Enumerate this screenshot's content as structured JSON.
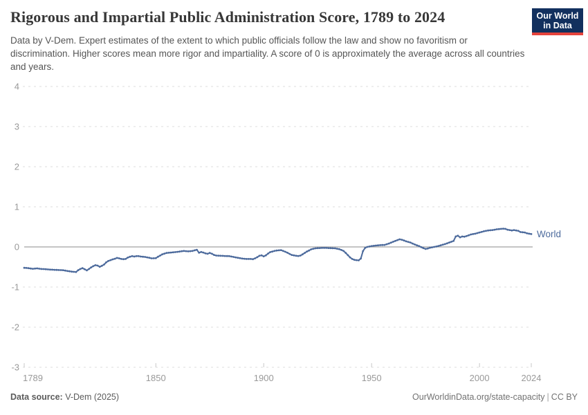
{
  "header": {
    "title": "Rigorous and Impartial Public Administration Score, 1789 to 2024",
    "subtitle_lines": [
      "Data by V-Dem. Expert estimates of the extent to which public officials follow the law and show no favoritism",
      "or discrimination. Higher scores mean more rigor and impartiality. A score of 0 is approximately the average",
      "across all countries and years."
    ],
    "logo": {
      "line1": "Our World",
      "line2": "in Data",
      "bg": "#12305e",
      "accent": "#e5433c"
    }
  },
  "chart_data": {
    "type": "line",
    "title": "Rigorous and Impartial Public Administration Score, 1789 to 2024",
    "xlabel": "",
    "ylabel": "",
    "xlim": [
      1789,
      2024
    ],
    "ylim": [
      -3,
      4
    ],
    "x_ticks": [
      1789,
      1850,
      1900,
      1950,
      2000,
      2024
    ],
    "y_ticks": [
      4,
      3,
      2,
      1,
      0,
      -1,
      -2,
      -3
    ],
    "grid": "horizontal-dashed",
    "zero_line": true,
    "legend_position": "end-of-line",
    "colors": {
      "line": "#4c6a9c",
      "grid": "#dddddd",
      "zero_line": "#a1a1a1",
      "tick_label": "#999999",
      "tick_mark": "#c8c8c8"
    },
    "series": [
      {
        "name": "World",
        "color": "#4c6a9c",
        "points": [
          [
            1789,
            -0.52
          ],
          [
            1791,
            -0.53
          ],
          [
            1793,
            -0.545
          ],
          [
            1795,
            -0.535
          ],
          [
            1797,
            -0.55
          ],
          [
            1799,
            -0.555
          ],
          [
            1801,
            -0.565
          ],
          [
            1803,
            -0.57
          ],
          [
            1805,
            -0.575
          ],
          [
            1807,
            -0.58
          ],
          [
            1809,
            -0.6
          ],
          [
            1811,
            -0.615
          ],
          [
            1813,
            -0.625
          ],
          [
            1814,
            -0.58
          ],
          [
            1815,
            -0.55
          ],
          [
            1816,
            -0.53
          ],
          [
            1817,
            -0.555
          ],
          [
            1818,
            -0.585
          ],
          [
            1819,
            -0.55
          ],
          [
            1820,
            -0.51
          ],
          [
            1821,
            -0.48
          ],
          [
            1822,
            -0.455
          ],
          [
            1823,
            -0.465
          ],
          [
            1824,
            -0.495
          ],
          [
            1825,
            -0.47
          ],
          [
            1826,
            -0.44
          ],
          [
            1827,
            -0.385
          ],
          [
            1828,
            -0.35
          ],
          [
            1829,
            -0.33
          ],
          [
            1830,
            -0.31
          ],
          [
            1831,
            -0.295
          ],
          [
            1832,
            -0.275
          ],
          [
            1833,
            -0.285
          ],
          [
            1834,
            -0.3
          ],
          [
            1835,
            -0.305
          ],
          [
            1836,
            -0.3
          ],
          [
            1837,
            -0.265
          ],
          [
            1838,
            -0.245
          ],
          [
            1839,
            -0.23
          ],
          [
            1840,
            -0.24
          ],
          [
            1841,
            -0.23
          ],
          [
            1842,
            -0.23
          ],
          [
            1843,
            -0.24
          ],
          [
            1845,
            -0.25
          ],
          [
            1847,
            -0.27
          ],
          [
            1848,
            -0.285
          ],
          [
            1850,
            -0.28
          ],
          [
            1851,
            -0.245
          ],
          [
            1852,
            -0.215
          ],
          [
            1853,
            -0.185
          ],
          [
            1855,
            -0.15
          ],
          [
            1857,
            -0.14
          ],
          [
            1859,
            -0.13
          ],
          [
            1861,
            -0.115
          ],
          [
            1863,
            -0.1
          ],
          [
            1865,
            -0.11
          ],
          [
            1867,
            -0.1
          ],
          [
            1868,
            -0.085
          ],
          [
            1869,
            -0.07
          ],
          [
            1870,
            -0.145
          ],
          [
            1871,
            -0.125
          ],
          [
            1872,
            -0.14
          ],
          [
            1873,
            -0.16
          ],
          [
            1874,
            -0.17
          ],
          [
            1875,
            -0.15
          ],
          [
            1876,
            -0.17
          ],
          [
            1877,
            -0.2
          ],
          [
            1878,
            -0.215
          ],
          [
            1880,
            -0.22
          ],
          [
            1882,
            -0.225
          ],
          [
            1884,
            -0.23
          ],
          [
            1886,
            -0.25
          ],
          [
            1888,
            -0.27
          ],
          [
            1890,
            -0.29
          ],
          [
            1892,
            -0.3
          ],
          [
            1894,
            -0.3
          ],
          [
            1895,
            -0.305
          ],
          [
            1896,
            -0.285
          ],
          [
            1897,
            -0.255
          ],
          [
            1898,
            -0.22
          ],
          [
            1899,
            -0.21
          ],
          [
            1900,
            -0.235
          ],
          [
            1901,
            -0.21
          ],
          [
            1902,
            -0.165
          ],
          [
            1903,
            -0.13
          ],
          [
            1904,
            -0.115
          ],
          [
            1905,
            -0.1
          ],
          [
            1906,
            -0.09
          ],
          [
            1907,
            -0.085
          ],
          [
            1908,
            -0.08
          ],
          [
            1909,
            -0.1
          ],
          [
            1910,
            -0.12
          ],
          [
            1911,
            -0.145
          ],
          [
            1912,
            -0.175
          ],
          [
            1913,
            -0.2
          ],
          [
            1914,
            -0.21
          ],
          [
            1915,
            -0.22
          ],
          [
            1916,
            -0.225
          ],
          [
            1917,
            -0.215
          ],
          [
            1918,
            -0.185
          ],
          [
            1919,
            -0.15
          ],
          [
            1920,
            -0.115
          ],
          [
            1921,
            -0.09
          ],
          [
            1922,
            -0.06
          ],
          [
            1923,
            -0.045
          ],
          [
            1924,
            -0.035
          ],
          [
            1925,
            -0.03
          ],
          [
            1927,
            -0.025
          ],
          [
            1929,
            -0.025
          ],
          [
            1931,
            -0.03
          ],
          [
            1933,
            -0.035
          ],
          [
            1934,
            -0.045
          ],
          [
            1935,
            -0.055
          ],
          [
            1936,
            -0.075
          ],
          [
            1937,
            -0.1
          ],
          [
            1938,
            -0.15
          ],
          [
            1939,
            -0.205
          ],
          [
            1940,
            -0.26
          ],
          [
            1941,
            -0.3
          ],
          [
            1942,
            -0.32
          ],
          [
            1943,
            -0.33
          ],
          [
            1944,
            -0.335
          ],
          [
            1945,
            -0.29
          ],
          [
            1946,
            -0.105
          ],
          [
            1947,
            -0.025
          ],
          [
            1948,
            0.0
          ],
          [
            1949,
            0.01
          ],
          [
            1950,
            0.02
          ],
          [
            1952,
            0.035
          ],
          [
            1954,
            0.045
          ],
          [
            1956,
            0.05
          ],
          [
            1958,
            0.085
          ],
          [
            1960,
            0.13
          ],
          [
            1961,
            0.15
          ],
          [
            1962,
            0.17
          ],
          [
            1963,
            0.19
          ],
          [
            1964,
            0.18
          ],
          [
            1965,
            0.16
          ],
          [
            1966,
            0.14
          ],
          [
            1968,
            0.11
          ],
          [
            1970,
            0.06
          ],
          [
            1972,
            0.02
          ],
          [
            1974,
            -0.03
          ],
          [
            1975,
            -0.05
          ],
          [
            1976,
            -0.04
          ],
          [
            1977,
            -0.02
          ],
          [
            1978,
            -0.01
          ],
          [
            1980,
            0.01
          ],
          [
            1982,
            0.04
          ],
          [
            1984,
            0.07
          ],
          [
            1986,
            0.11
          ],
          [
            1988,
            0.15
          ],
          [
            1989,
            0.26
          ],
          [
            1990,
            0.28
          ],
          [
            1991,
            0.24
          ],
          [
            1992,
            0.26
          ],
          [
            1993,
            0.255
          ],
          [
            1994,
            0.27
          ],
          [
            1996,
            0.31
          ],
          [
            1998,
            0.33
          ],
          [
            2000,
            0.36
          ],
          [
            2002,
            0.39
          ],
          [
            2004,
            0.41
          ],
          [
            2006,
            0.42
          ],
          [
            2008,
            0.44
          ],
          [
            2010,
            0.45
          ],
          [
            2011,
            0.455
          ],
          [
            2012,
            0.45
          ],
          [
            2013,
            0.43
          ],
          [
            2014,
            0.42
          ],
          [
            2015,
            0.41
          ],
          [
            2016,
            0.42
          ],
          [
            2017,
            0.41
          ],
          [
            2018,
            0.4
          ],
          [
            2019,
            0.37
          ],
          [
            2020,
            0.365
          ],
          [
            2021,
            0.36
          ],
          [
            2022,
            0.34
          ],
          [
            2023,
            0.33
          ],
          [
            2024,
            0.32
          ]
        ]
      }
    ]
  },
  "footer": {
    "source_label": "Data source:",
    "source_value": " V-Dem (2025)",
    "url": "OurWorldinData.org/state-capacity",
    "separator": "|",
    "license": "CC BY"
  }
}
